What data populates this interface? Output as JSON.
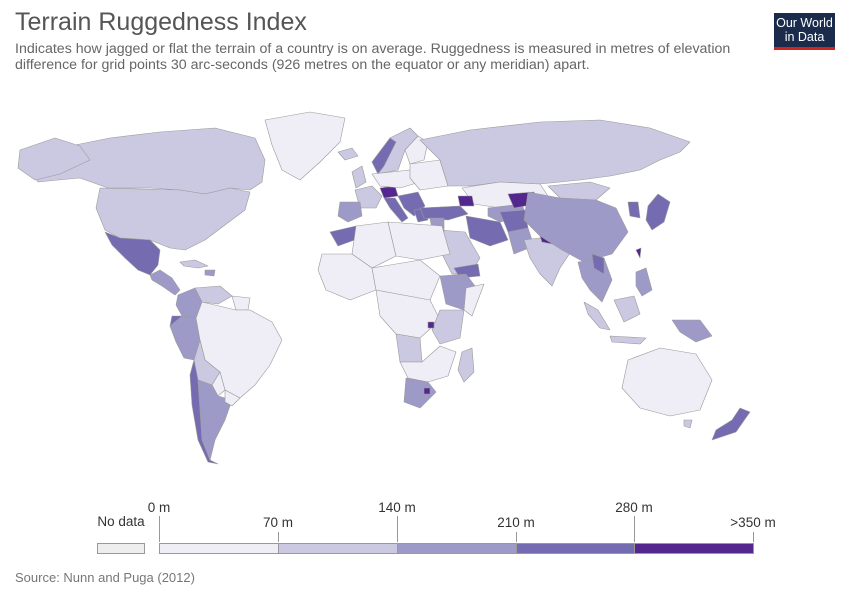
{
  "header": {
    "title": "Terrain Ruggedness Index",
    "subtitle": "Indicates how jagged or flat the terrain of a country is on average. Ruggedness is measured in metres of elevation difference for grid points 30 arc-seconds (926 metres on the equator or any meridian) apart."
  },
  "logo": {
    "line1": "Our World",
    "line2": "in Data"
  },
  "legend": {
    "no_data_label": "No data",
    "no_data_color": "#eeeeee",
    "labels": [
      "0 m",
      "70 m",
      "140 m",
      "210 m",
      "280 m",
      ">350 m"
    ],
    "colors": [
      "#efedf5",
      "#cbc9e2",
      "#9e9ac8",
      "#756bb1",
      "#54278f"
    ]
  },
  "source": "Source: Nunn and Puga (2012)",
  "colors": {
    "border": "#bbbbbb",
    "ocean": "#ffffff"
  }
}
